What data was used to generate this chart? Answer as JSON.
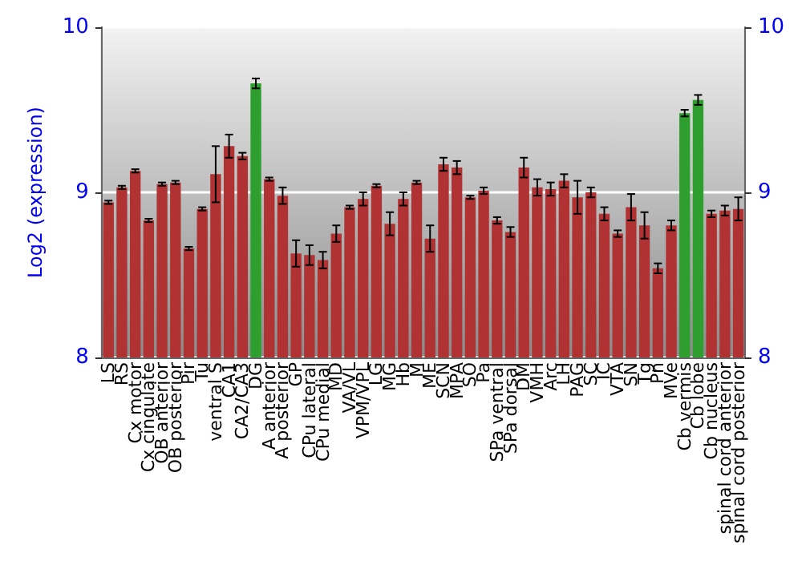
{
  "chart_data": {
    "type": "bar",
    "ylabel": "Log2 (expression)",
    "categories": [
      "LS",
      "RS",
      "Cx motor",
      "Cx cingulate",
      "OB anterior",
      "OB posterior",
      "Pir",
      "Tu",
      "ventral S",
      "CA1",
      "CA2/CA3",
      "DG",
      "A anterior",
      "A posterior",
      "GP",
      "CPu lateral",
      "CPu medial",
      "MD",
      "VA/VL",
      "VPM/VPL",
      "LG",
      "MG",
      "Hb",
      "M",
      "ME",
      "SCN",
      "MPA",
      "SO",
      "Pa",
      "SPa ventral",
      "SPa dorsal",
      "DM",
      "VMH",
      "Arc",
      "LH",
      "PAG",
      "SC",
      "IC",
      "VTA",
      "SN",
      "Tg",
      "Pn",
      "MVe",
      "Cb vermis",
      "Cb lobe",
      "Cb nucleus",
      "spinal cord anterior",
      "spinal cord posterior"
    ],
    "values": [
      8.94,
      9.03,
      9.13,
      8.83,
      9.05,
      9.06,
      8.66,
      8.9,
      9.11,
      9.28,
      9.22,
      9.66,
      9.08,
      8.98,
      8.63,
      8.62,
      8.59,
      8.75,
      8.91,
      8.96,
      9.04,
      8.81,
      8.96,
      9.06,
      8.72,
      9.17,
      9.15,
      8.97,
      9.01,
      8.83,
      8.76,
      9.15,
      9.03,
      9.02,
      9.07,
      8.97,
      9.0,
      8.87,
      8.75,
      8.91,
      8.8,
      8.54,
      8.8,
      9.48,
      9.56,
      8.87,
      8.89,
      8.9
    ],
    "errors": [
      0.01,
      0.01,
      0.01,
      0.01,
      0.01,
      0.01,
      0.01,
      0.01,
      0.17,
      0.07,
      0.02,
      0.03,
      0.01,
      0.05,
      0.08,
      0.06,
      0.05,
      0.05,
      0.01,
      0.04,
      0.01,
      0.07,
      0.04,
      0.01,
      0.08,
      0.04,
      0.04,
      0.01,
      0.02,
      0.02,
      0.03,
      0.06,
      0.05,
      0.04,
      0.04,
      0.1,
      0.03,
      0.04,
      0.02,
      0.08,
      0.08,
      0.03,
      0.03,
      0.02,
      0.03,
      0.02,
      0.03,
      0.07
    ],
    "colors": [
      "#b03232",
      "#b03232",
      "#b03232",
      "#b03232",
      "#b03232",
      "#b03232",
      "#b03232",
      "#b03232",
      "#b03232",
      "#b03232",
      "#b03232",
      "#2e9e2e",
      "#b03232",
      "#b03232",
      "#b03232",
      "#b03232",
      "#b03232",
      "#b03232",
      "#b03232",
      "#b03232",
      "#b03232",
      "#b03232",
      "#b03232",
      "#b03232",
      "#b03232",
      "#b03232",
      "#b03232",
      "#b03232",
      "#b03232",
      "#b03232",
      "#b03232",
      "#b03232",
      "#b03232",
      "#b03232",
      "#b03232",
      "#b03232",
      "#b03232",
      "#b03232",
      "#b03232",
      "#b03232",
      "#b03232",
      "#b03232",
      "#b03232",
      "#2e9e2e",
      "#2e9e2e",
      "#b03232",
      "#b03232",
      "#b03232"
    ],
    "ylim": [
      8,
      10
    ],
    "yticks": [
      8,
      9,
      10
    ],
    "y2lim": [
      8,
      10
    ],
    "y2ticks": [
      8,
      9,
      10
    ],
    "grid": "y"
  }
}
